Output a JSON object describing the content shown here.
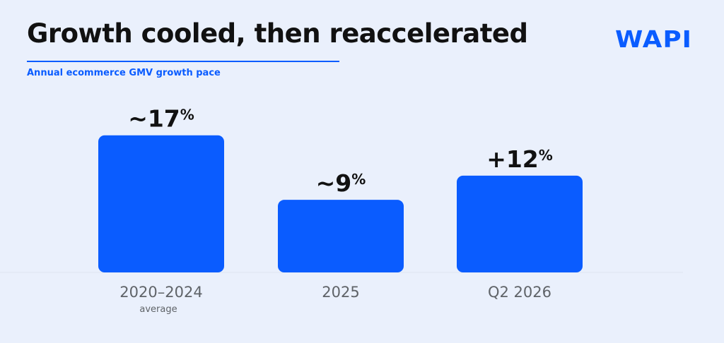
{
  "title": "Growth cooled, then reaccelerated",
  "subtitle": "Annual ecommerce GMV growth pace",
  "logo": "WAPI",
  "colors": {
    "accent": "#0a5cff",
    "background": "#eaf0fc",
    "text": "#111111",
    "muted": "#5f6368"
  },
  "chart_data": {
    "type": "bar",
    "title": "Growth cooled, then reaccelerated",
    "subtitle": "Annual ecommerce GMV growth pace",
    "categories": [
      "2020–2024",
      "2025",
      "Q2 2026"
    ],
    "category_sublabels": [
      "average",
      "",
      ""
    ],
    "values": [
      17,
      9,
      12
    ],
    "value_prefixes": [
      "~",
      "~",
      "+"
    ],
    "value_unit": "%",
    "ylim": [
      0,
      21
    ],
    "grid": false,
    "legend": "none"
  }
}
